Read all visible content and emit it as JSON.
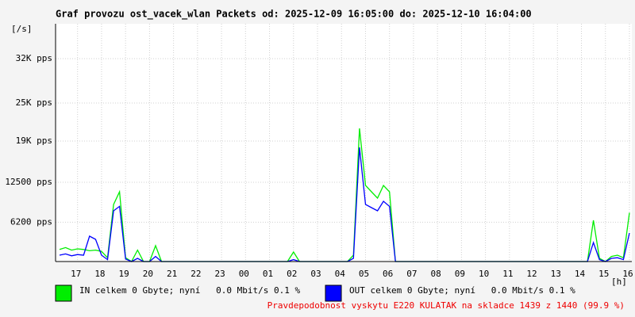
{
  "chart_data": {
    "type": "line",
    "title": "Graf provozu ost_vacek_wlan Packets od: 2025-12-09 16:05:00 do: 2025-12-10 16:04:00",
    "ylabel": "[/s]",
    "xlabel": "[h]",
    "footer": "Pravdepodobnost vyskytu E220 KULATAK na skladce 1439 z 1440 (99.9 %)",
    "grid": true,
    "xlim": [
      0.0833,
      24.1
    ],
    "xticks": [
      {
        "value": 1,
        "label": "17"
      },
      {
        "value": 2,
        "label": "18"
      },
      {
        "value": 3,
        "label": "19"
      },
      {
        "value": 4,
        "label": "20"
      },
      {
        "value": 5,
        "label": "21"
      },
      {
        "value": 6,
        "label": "22"
      },
      {
        "value": 7,
        "label": "23"
      },
      {
        "value": 8,
        "label": "00"
      },
      {
        "value": 9,
        "label": "01"
      },
      {
        "value": 10,
        "label": "02"
      },
      {
        "value": 11,
        "label": "03"
      },
      {
        "value": 12,
        "label": "04"
      },
      {
        "value": 13,
        "label": "05"
      },
      {
        "value": 14,
        "label": "06"
      },
      {
        "value": 15,
        "label": "07"
      },
      {
        "value": 16,
        "label": "08"
      },
      {
        "value": 17,
        "label": "09"
      },
      {
        "value": 18,
        "label": "10"
      },
      {
        "value": 19,
        "label": "11"
      },
      {
        "value": 20,
        "label": "12"
      },
      {
        "value": 21,
        "label": "13"
      },
      {
        "value": 22,
        "label": "14"
      },
      {
        "value": 23,
        "label": "15"
      },
      {
        "value": 24,
        "label": "16"
      }
    ],
    "ylim": [
      0,
      37500
    ],
    "yticks": [
      {
        "value": 6200,
        "label": "6200 pps"
      },
      {
        "value": 12500,
        "label": "12500 pps"
      },
      {
        "value": 19000,
        "label": "19K pps"
      },
      {
        "value": 25000,
        "label": "25K pps"
      },
      {
        "value": 32000,
        "label": "32K pps"
      }
    ],
    "x": [
      0.25,
      0.5,
      0.75,
      1,
      1.25,
      1.5,
      1.75,
      2,
      2.25,
      2.5,
      2.75,
      3,
      3.25,
      3.5,
      3.75,
      4,
      4.25,
      4.5,
      4.75,
      5,
      5.25,
      5.5,
      5.75,
      6,
      6.25,
      6.5,
      6.75,
      7,
      7.25,
      7.5,
      7.75,
      8,
      8.25,
      8.5,
      8.75,
      9,
      9.25,
      9.5,
      9.75,
      10,
      10.25,
      10.5,
      10.75,
      11,
      11.25,
      11.5,
      11.75,
      12,
      12.25,
      12.5,
      12.75,
      13,
      13.25,
      13.5,
      13.75,
      14,
      14.25,
      14.5,
      14.75,
      15,
      15.25,
      15.5,
      15.75,
      16,
      16.25,
      16.5,
      16.75,
      17,
      17.25,
      17.5,
      17.75,
      18,
      18.25,
      18.5,
      18.75,
      19,
      19.25,
      19.5,
      19.75,
      20,
      20.25,
      20.5,
      20.75,
      21,
      21.25,
      21.5,
      21.75,
      22,
      22.25,
      22.5,
      22.75,
      23,
      23.25,
      23.5,
      23.75,
      24
    ],
    "series": [
      {
        "name": "IN celkem 0 Gbyte; nyní   0.0 Mbit/s 0.1 %",
        "color": "#00ee00",
        "values": [
          1900,
          2200,
          1800,
          2000,
          1900,
          1700,
          1800,
          1600,
          600,
          9000,
          11000,
          600,
          0,
          1800,
          0,
          0,
          2500,
          0,
          0,
          0,
          0,
          0,
          0,
          0,
          0,
          0,
          0,
          0,
          0,
          0,
          0,
          0,
          0,
          0,
          0,
          0,
          0,
          0,
          0,
          1500,
          0,
          0,
          0,
          0,
          0,
          0,
          0,
          0,
          0,
          1000,
          21000,
          12000,
          11000,
          10000,
          12000,
          11000,
          0,
          0,
          0,
          0,
          0,
          0,
          0,
          0,
          0,
          0,
          0,
          0,
          0,
          0,
          0,
          0,
          0,
          0,
          0,
          0,
          0,
          0,
          0,
          0,
          0,
          0,
          0,
          0,
          0,
          0,
          0,
          0,
          0,
          6500,
          500,
          0,
          800,
          1000,
          600,
          7700
        ]
      },
      {
        "name": "OUT celkem 0 Gbyte; nyní   0.0 Mbit/s 0.1 %",
        "color": "#0000ff",
        "values": [
          1000,
          1200,
          900,
          1100,
          1000,
          4000,
          3500,
          1000,
          300,
          8000,
          8700,
          400,
          0,
          500,
          0,
          0,
          800,
          0,
          0,
          0,
          0,
          0,
          0,
          0,
          0,
          0,
          0,
          0,
          0,
          0,
          0,
          0,
          0,
          0,
          0,
          0,
          0,
          0,
          0,
          300,
          0,
          0,
          0,
          0,
          0,
          0,
          0,
          0,
          0,
          500,
          18000,
          9000,
          8500,
          8000,
          9500,
          8700,
          0,
          0,
          0,
          0,
          0,
          0,
          0,
          0,
          0,
          0,
          0,
          0,
          0,
          0,
          0,
          0,
          0,
          0,
          0,
          0,
          0,
          0,
          0,
          0,
          0,
          0,
          0,
          0,
          0,
          0,
          0,
          0,
          0,
          3000,
          300,
          0,
          500,
          600,
          300,
          4500
        ]
      }
    ]
  }
}
